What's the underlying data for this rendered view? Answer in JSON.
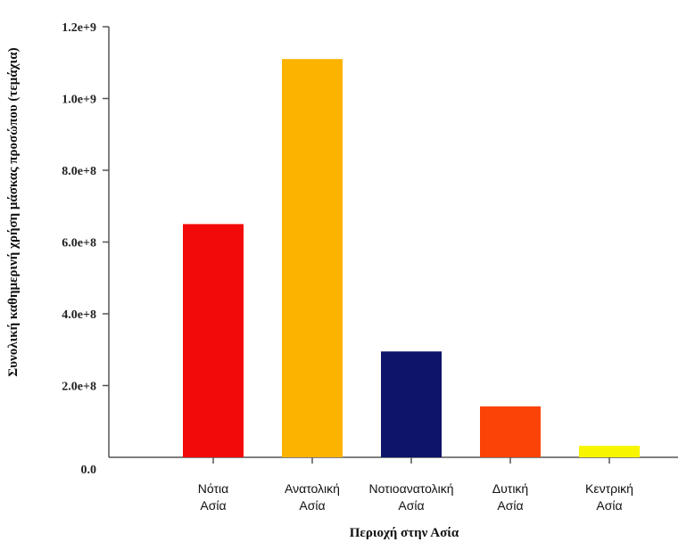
{
  "chart_data": {
    "type": "bar",
    "categories": [
      [
        "Νότια",
        "Ασία"
      ],
      [
        "Ανατολική",
        "Ασία"
      ],
      [
        "Νοτιοανατολική",
        "Ασία"
      ],
      [
        "Δυτική",
        "Ασία"
      ],
      [
        "Κεντρική",
        "Ασία"
      ]
    ],
    "values": [
      650000000,
      1110000000,
      295000000,
      142000000,
      32000000
    ],
    "colors": [
      "#f20a0a",
      "#fbb300",
      "#0d1469",
      "#fb4308",
      "#f7f500"
    ],
    "yticks": [
      0,
      200000000,
      400000000,
      600000000,
      800000000,
      1000000000,
      1200000000
    ],
    "ytick_labels": [
      "0.0",
      "2.0e+8",
      "4.0e+8",
      "6.0e+8",
      "8.0e+8",
      "1.0e+9",
      "1.2e+9"
    ],
    "ylim": [
      0,
      1200000000
    ],
    "xlabel": "Περιοχή στην Ασία",
    "ylabel": "Συνολική καθημερινή χρήση μάσκας προσώπου (τεμάχια)",
    "grid": false,
    "legend": "none"
  }
}
